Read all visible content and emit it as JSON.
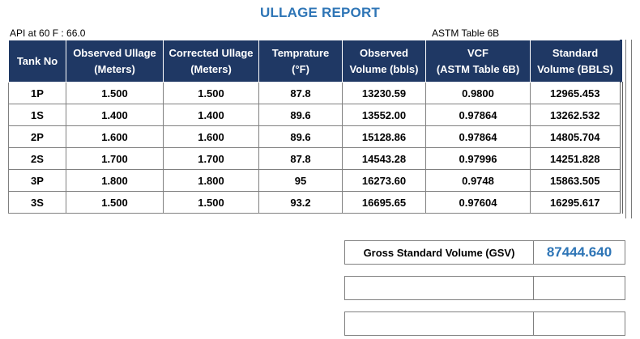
{
  "report": {
    "title": "ULLAGE REPORT",
    "api_note": "API at 60 F : 66.0",
    "astm_note": "ASTM Table 6B"
  },
  "table": {
    "headers": [
      {
        "line1": "Tank No",
        "line2": ""
      },
      {
        "line1": "Observed Ullage",
        "line2": "(Meters)"
      },
      {
        "line1": "Corrected Ullage",
        "line2": "(Meters)"
      },
      {
        "line1": "Temprature",
        "line2": "(°F)"
      },
      {
        "line1": "Observed",
        "line2": "Volume (bbls)"
      },
      {
        "line1": "VCF",
        "line2": "(ASTM Table 6B)"
      },
      {
        "line1": "Standard",
        "line2": "Volume (BBLS)"
      }
    ],
    "rows": [
      [
        "1P",
        "1.500",
        "1.500",
        "87.8",
        "13230.59",
        "0.9800",
        "12965.453"
      ],
      [
        "1S",
        "1.400",
        "1.400",
        "89.6",
        "13552.00",
        "0.97864",
        "13262.532"
      ],
      [
        "2P",
        "1.600",
        "1.600",
        "89.6",
        "15128.86",
        "0.97864",
        "14805.704"
      ],
      [
        "2S",
        "1.700",
        "1.700",
        "87.8",
        "14543.28",
        "0.97996",
        "14251.828"
      ],
      [
        "3P",
        "1.800",
        "1.800",
        "95",
        "16273.60",
        "0.9748",
        "15863.505"
      ],
      [
        "3S",
        "1.500",
        "1.500",
        "93.2",
        "16695.65",
        "0.97604",
        "16295.617"
      ]
    ]
  },
  "summary": {
    "gsv_label": "Gross Standard Volume (GSV)",
    "gsv_value": "87444.640"
  },
  "colors": {
    "header_bg": "#1f3864",
    "title_blue": "#2e75b6"
  }
}
